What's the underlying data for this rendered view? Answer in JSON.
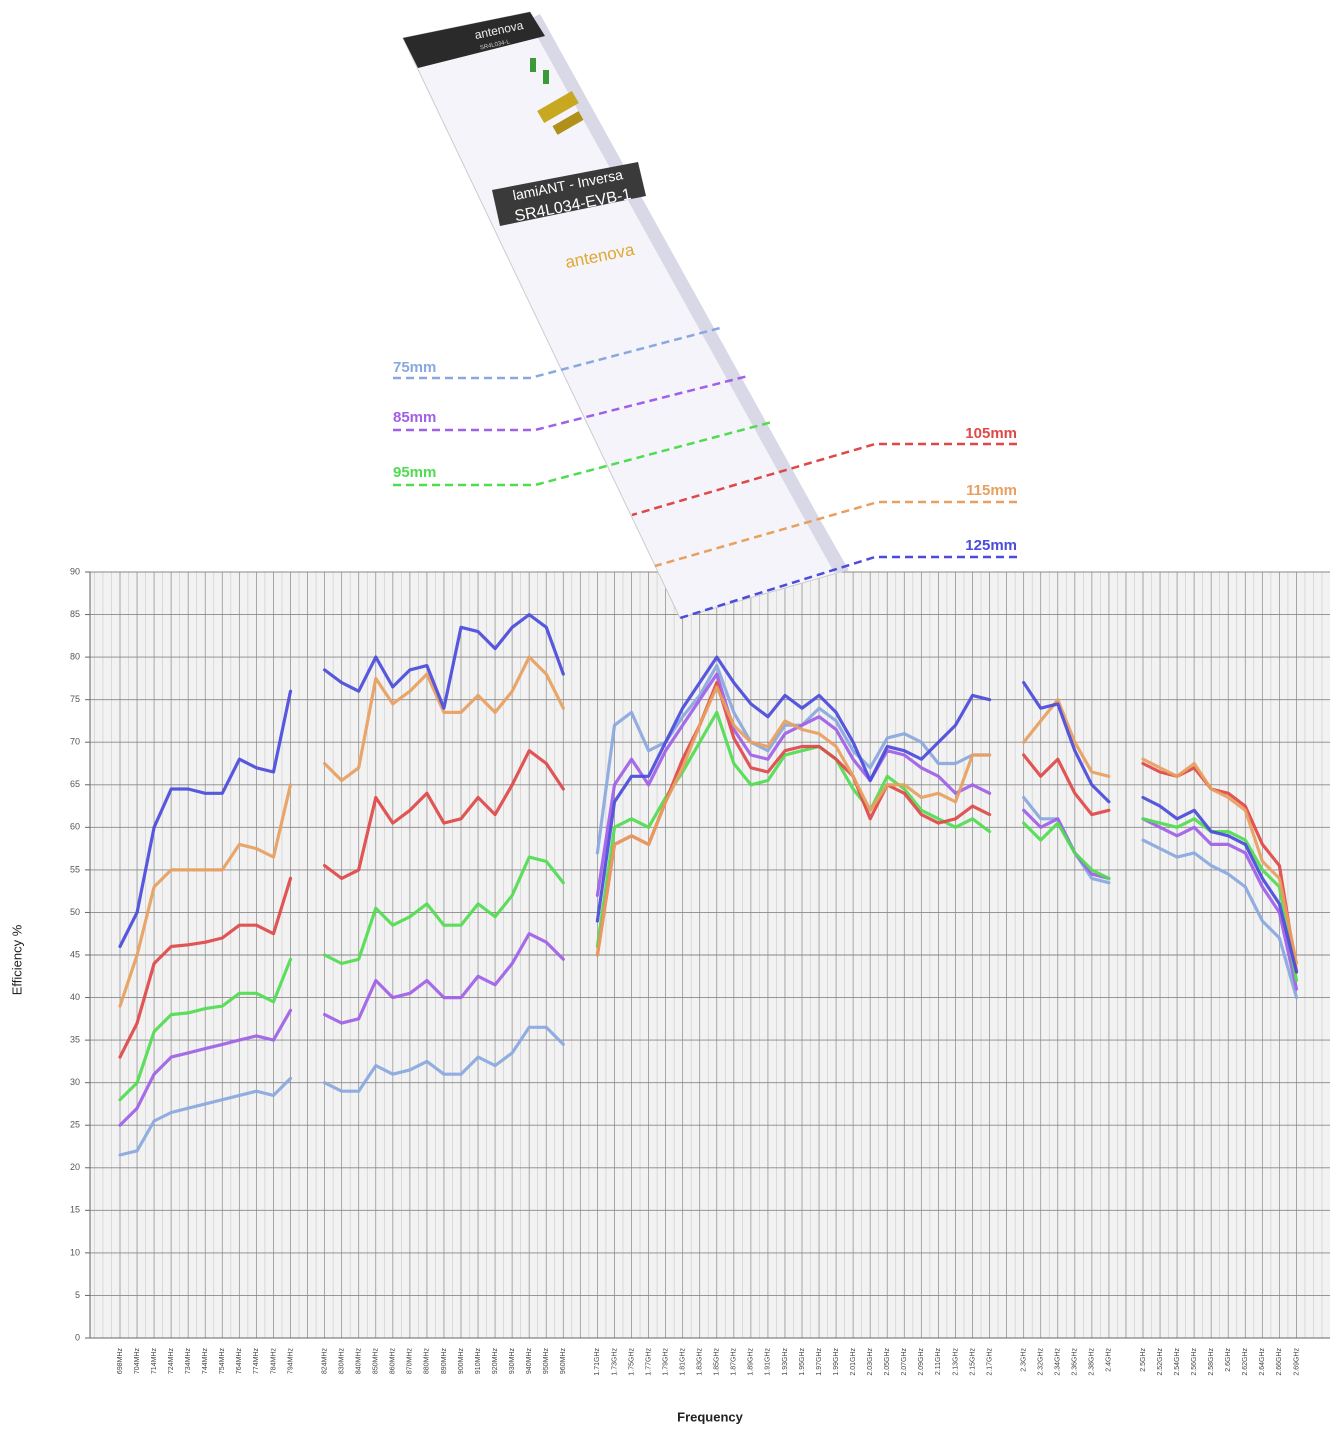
{
  "chart_data": {
    "type": "line",
    "x_label": "Frequency",
    "y_label": "Efficiency %",
    "board_text": [
      "antenova",
      "SR4L034-L",
      "lamiANT - Inversa",
      "SR4L034-EVB-1",
      "antenova"
    ],
    "categories": [
      "698MHz",
      "704MHz",
      "714MHz",
      "724MHz",
      "734MHz",
      "744MHz",
      "754MHz",
      "764MHz",
      "774MHz",
      "784MHz",
      "794MHz",
      null,
      "824MHz",
      "830MHz",
      "840MHz",
      "850MHz",
      "860MHz",
      "870MHz",
      "880MHz",
      "890MHz",
      "900MHz",
      "910MHz",
      "920MHz",
      "930MHz",
      "940MHz",
      "950MHz",
      "960MHz",
      null,
      "1.71GHz",
      "1.73GHz",
      "1.75GHz",
      "1.77GHz",
      "1.79GHz",
      "1.81GHz",
      "1.83GHz",
      "1.85GHz",
      "1.87GHz",
      "1.89GHz",
      "1.91GHz",
      "1.93GHz",
      "1.95GHz",
      "1.97GHz",
      "1.99GHz",
      "2.01GHz",
      "2.03GHz",
      "2.05GHz",
      "2.07GHz",
      "2.09GHz",
      "2.11GHz",
      "2.13GHz",
      "2.15GHz",
      "2.17GHz",
      null,
      "2.3GHz",
      "2.32GHz",
      "2.34GHz",
      "2.36GHz",
      "2.38GHz",
      "2.4GHz",
      null,
      "2.5GHz",
      "2.52GHz",
      "2.54GHz",
      "2.56GHz",
      "2.58GHz",
      "2.6GHz",
      "2.62GHz",
      "2.64GHz",
      "2.66GHz",
      "2.69GHz"
    ],
    "series": [
      {
        "name": "75mm",
        "color": "#8aa8e0",
        "values": [
          21.5,
          22,
          25.5,
          26.5,
          27,
          27.5,
          28,
          28.5,
          29,
          28.5,
          30.5,
          null,
          30,
          29,
          29,
          32,
          31,
          31.5,
          32.5,
          31,
          31,
          33,
          32,
          33.5,
          36.5,
          36.5,
          34.5,
          null,
          57,
          72,
          73.5,
          69,
          70,
          73,
          75.5,
          79,
          73.5,
          70,
          69,
          72,
          72,
          74,
          72.5,
          69,
          67,
          70.5,
          71,
          70,
          67.5,
          67.5,
          68.5,
          68.5,
          null,
          63.5,
          61,
          61,
          57,
          54,
          53.5,
          null,
          58.5,
          57.5,
          56.5,
          57,
          55.5,
          54.5,
          53,
          49,
          47,
          40
        ]
      },
      {
        "name": "85mm",
        "color": "#a060e8",
        "values": [
          25,
          27,
          31,
          33,
          33.5,
          34,
          34.5,
          35,
          35.5,
          35,
          38.5,
          null,
          38,
          37,
          37.5,
          42,
          40,
          40.5,
          42,
          40,
          40,
          42.5,
          41.5,
          44,
          47.5,
          46.5,
          44.5,
          null,
          52,
          65,
          68,
          65,
          69,
          72,
          75,
          78,
          71.5,
          68.5,
          68,
          71,
          72,
          73,
          71.5,
          68,
          65.5,
          69,
          68.5,
          67,
          66,
          64,
          65,
          64,
          null,
          62,
          60,
          61,
          57,
          54.5,
          54,
          null,
          61,
          60,
          59,
          60,
          58,
          58,
          57,
          53,
          50,
          41
        ]
      },
      {
        "name": "95mm",
        "color": "#50dc50",
        "values": [
          28,
          30,
          36,
          38,
          38.2,
          38.7,
          39,
          40.5,
          40.5,
          39.5,
          44.5,
          null,
          45,
          44,
          44.5,
          50.5,
          48.5,
          49.5,
          51,
          48.5,
          48.5,
          51,
          49.5,
          52,
          56.5,
          56,
          53.5,
          null,
          46,
          60,
          61,
          60,
          63.5,
          66.5,
          70,
          73.5,
          67.5,
          65,
          65.5,
          68.5,
          69,
          69.5,
          68,
          64.5,
          62,
          66,
          64.5,
          62,
          61,
          60,
          61,
          59.5,
          null,
          60.5,
          58.5,
          60.5,
          57,
          55,
          54,
          null,
          61,
          60.5,
          60,
          61,
          59.5,
          59.5,
          58.5,
          55,
          53,
          42
        ]
      },
      {
        "name": "105mm",
        "color": "#e04848",
        "values": [
          33,
          37,
          44,
          46,
          46.2,
          46.5,
          47,
          48.5,
          48.5,
          47.5,
          54,
          null,
          55.5,
          54,
          55,
          63.5,
          60.5,
          62,
          64,
          60.5,
          61,
          63.5,
          61.5,
          65,
          69,
          67.5,
          64.5,
          null,
          45,
          58,
          59,
          58,
          63,
          68,
          72,
          77,
          70.5,
          67,
          66.5,
          69,
          69.5,
          69.5,
          68,
          66,
          61,
          65,
          64,
          61.5,
          60.5,
          61,
          62.5,
          61.5,
          null,
          68.5,
          66,
          68,
          64,
          61.5,
          62,
          null,
          67.5,
          66.5,
          66,
          67,
          64.5,
          64,
          62.5,
          58,
          55.5,
          43
        ]
      },
      {
        "name": "115mm",
        "color": "#e8a060",
        "values": [
          39,
          45,
          53,
          55,
          55,
          55,
          55,
          58,
          57.5,
          56.5,
          65,
          null,
          67.5,
          65.5,
          67,
          77.5,
          74.5,
          76,
          78,
          73.5,
          73.5,
          75.5,
          73.5,
          76,
          80,
          78,
          74,
          null,
          45,
          58,
          59,
          58,
          63,
          67,
          72,
          76.5,
          72,
          70,
          69.5,
          72.5,
          71.5,
          71,
          69.5,
          66,
          62,
          65,
          65,
          63.5,
          64,
          63,
          68.5,
          68.5,
          null,
          70,
          72.5,
          75,
          70,
          66.5,
          66,
          null,
          68,
          67,
          66,
          67.5,
          64.5,
          63.5,
          62,
          56,
          54,
          44
        ]
      },
      {
        "name": "125mm",
        "color": "#4b4bdc",
        "values": [
          46,
          50,
          60,
          64.5,
          64.5,
          64,
          64,
          68,
          67,
          66.5,
          76,
          null,
          78.5,
          77,
          76,
          80,
          76.5,
          78.5,
          79,
          74,
          83.5,
          83,
          81,
          83.5,
          85,
          83.5,
          78,
          null,
          49,
          63,
          66,
          66,
          70,
          74,
          77,
          80,
          77,
          74.5,
          73,
          75.5,
          74,
          75.5,
          73.5,
          70,
          65.5,
          69.5,
          69,
          68,
          70,
          72,
          75.5,
          75,
          null,
          77,
          74,
          74.5,
          69,
          65,
          63,
          null,
          63.5,
          62.5,
          61,
          62,
          59.5,
          59,
          58,
          54,
          51,
          43
        ]
      }
    ],
    "ylim": [
      0,
      90
    ],
    "yticks": [
      0,
      5,
      10,
      15,
      20,
      25,
      30,
      35,
      40,
      45,
      50,
      55,
      60,
      65,
      70,
      75,
      80,
      85,
      90
    ],
    "grid": true
  }
}
